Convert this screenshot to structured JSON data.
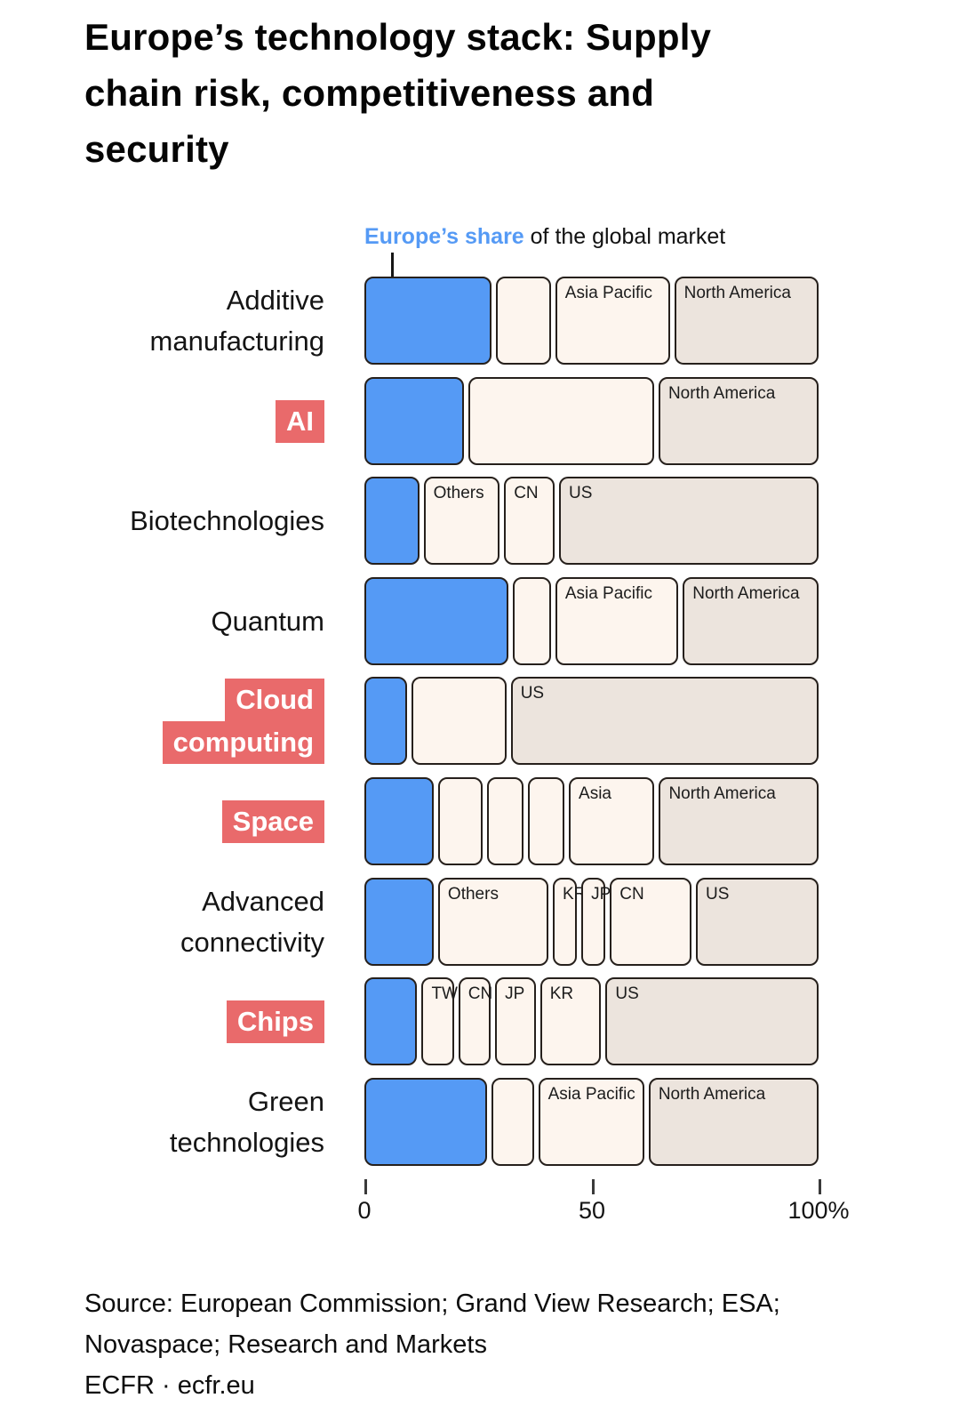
{
  "title_lines": [
    "Europe’s technology stack: Supply",
    "chain risk, competitiveness and",
    "security"
  ],
  "subtitle": {
    "highlight": "Europe’s share",
    "rest": " of the global market"
  },
  "colors": {
    "europe_blue": "#559AF5",
    "cream": "#FDF5EE",
    "beige": "#ECE4DD",
    "label_red": "#E96A6B",
    "outline": "#26201c"
  },
  "chart_data": {
    "type": "bar",
    "orientation": "horizontal-stacked",
    "unit": "%",
    "xlim": [
      0,
      100
    ],
    "x_axis_ticks": [
      {
        "label": "0",
        "pos": 0
      },
      {
        "label": "50",
        "pos": 50
      },
      {
        "label": "100%",
        "pos": 100
      }
    ],
    "series_note": "Blue segment of each bar = Europe’s share of the global market; remaining segments are other regions/countries",
    "rows": [
      {
        "category_lines": [
          "Additive",
          "manufacturing"
        ],
        "highlighted": false,
        "segments": [
          {
            "label": "",
            "region": "Europe",
            "value": 29,
            "tone": "blue"
          },
          {
            "label": "",
            "region": "",
            "value": 12,
            "tone": "cream"
          },
          {
            "label": "Asia Pacific",
            "region": "Asia Pacific",
            "value": 26,
            "tone": "cream"
          },
          {
            "label": "North America",
            "region": "North America",
            "value": 33,
            "tone": "beige"
          }
        ]
      },
      {
        "category_lines": [
          "AI"
        ],
        "highlighted": true,
        "segments": [
          {
            "label": "",
            "region": "Europe",
            "value": 22,
            "tone": "blue"
          },
          {
            "label": "",
            "region": "",
            "value": 42,
            "tone": "cream"
          },
          {
            "label": "North America",
            "region": "North America",
            "value": 36,
            "tone": "beige"
          }
        ]
      },
      {
        "category_lines": [
          "Biotechnologies"
        ],
        "highlighted": false,
        "segments": [
          {
            "label": "",
            "region": "Europe",
            "value": 12,
            "tone": "blue"
          },
          {
            "label": "Others",
            "region": "Others",
            "value": 17,
            "tone": "cream"
          },
          {
            "label": "CN",
            "region": "CN",
            "value": 11,
            "tone": "cream"
          },
          {
            "label": "US",
            "region": "US",
            "value": 60,
            "tone": "beige"
          }
        ]
      },
      {
        "category_lines": [
          "Quantum"
        ],
        "highlighted": false,
        "segments": [
          {
            "label": "",
            "region": "Europe",
            "value": 33,
            "tone": "blue"
          },
          {
            "label": "",
            "region": "",
            "value": 8,
            "tone": "cream"
          },
          {
            "label": "Asia Pacific",
            "region": "Asia Pacific",
            "value": 28,
            "tone": "cream"
          },
          {
            "label": "North America",
            "region": "North America",
            "value": 31,
            "tone": "beige"
          }
        ]
      },
      {
        "category_lines": [
          "Cloud",
          "computing"
        ],
        "highlighted": true,
        "segments": [
          {
            "label": "",
            "region": "Europe",
            "value": 9,
            "tone": "blue"
          },
          {
            "label": "",
            "region": "",
            "value": 21,
            "tone": "cream"
          },
          {
            "label": "US",
            "region": "US",
            "value": 70,
            "tone": "beige"
          }
        ]
      },
      {
        "category_lines": [
          "Space"
        ],
        "highlighted": true,
        "segments": [
          {
            "label": "",
            "region": "Europe",
            "value": 16,
            "tone": "blue"
          },
          {
            "label": "",
            "region": "",
            "value": 10,
            "tone": "cream"
          },
          {
            "label": "",
            "region": "",
            "value": 8,
            "tone": "cream"
          },
          {
            "label": "",
            "region": "",
            "value": 8,
            "tone": "cream"
          },
          {
            "label": "Asia",
            "region": "Asia",
            "value": 20,
            "tone": "cream"
          },
          {
            "label": "North America",
            "region": "North America",
            "value": 38,
            "tone": "beige"
          }
        ]
      },
      {
        "category_lines": [
          "Advanced",
          "connectivity"
        ],
        "highlighted": false,
        "segments": [
          {
            "label": "",
            "region": "Europe",
            "value": 16,
            "tone": "blue"
          },
          {
            "label": "Others",
            "region": "Others",
            "value": 26,
            "tone": "cream"
          },
          {
            "label": "KR",
            "region": "KR",
            "value": 5,
            "tone": "cream"
          },
          {
            "label": "JP",
            "region": "JP",
            "value": 5,
            "tone": "cream"
          },
          {
            "label": "CN",
            "region": "CN",
            "value": 19,
            "tone": "cream"
          },
          {
            "label": "US",
            "region": "US",
            "value": 29,
            "tone": "beige"
          }
        ]
      },
      {
        "category_lines": [
          "Chips"
        ],
        "highlighted": true,
        "segments": [
          {
            "label": "",
            "region": "Europe",
            "value": 12,
            "tone": "blue"
          },
          {
            "label": "TW",
            "region": "TW",
            "value": 7,
            "tone": "cream"
          },
          {
            "label": "CN",
            "region": "CN",
            "value": 7,
            "tone": "cream"
          },
          {
            "label": "JP",
            "region": "JP",
            "value": 9,
            "tone": "cream"
          },
          {
            "label": "KR",
            "region": "KR",
            "value": 14,
            "tone": "cream"
          },
          {
            "label": "US",
            "region": "US",
            "value": 51,
            "tone": "beige"
          }
        ]
      },
      {
        "category_lines": [
          "Green",
          "technologies"
        ],
        "highlighted": false,
        "segments": [
          {
            "label": "",
            "region": "Europe",
            "value": 28,
            "tone": "blue"
          },
          {
            "label": "",
            "region": "",
            "value": 9,
            "tone": "cream"
          },
          {
            "label": "Asia Pacific",
            "region": "Asia Pacific",
            "value": 24,
            "tone": "cream"
          },
          {
            "label": "North America",
            "region": "North America",
            "value": 39,
            "tone": "beige"
          }
        ]
      }
    ]
  },
  "source_lines": [
    "Source: European Commission; Grand View Research; ESA;",
    "Novaspace; Research and Markets",
    "ECFR · ecfr.eu"
  ]
}
